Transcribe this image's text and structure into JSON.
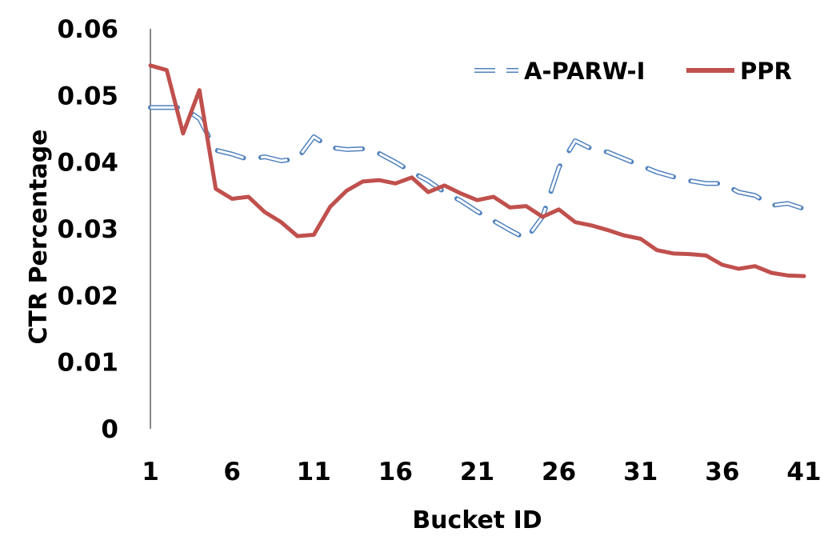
{
  "chart_data": {
    "type": "line",
    "title": "",
    "xlabel": "Bucket ID",
    "ylabel": "CTR Percentage",
    "x": [
      1,
      2,
      3,
      4,
      5,
      6,
      7,
      8,
      9,
      10,
      11,
      12,
      13,
      14,
      15,
      16,
      17,
      18,
      19,
      20,
      21,
      22,
      23,
      24,
      25,
      26,
      27,
      28,
      29,
      30,
      31,
      32,
      33,
      34,
      35,
      36,
      37,
      38,
      39,
      40,
      41
    ],
    "xticks": [
      "1",
      "6",
      "11",
      "16",
      "21",
      "26",
      "31",
      "36",
      "41"
    ],
    "xtick_values": [
      1,
      6,
      11,
      16,
      21,
      26,
      31,
      36,
      41
    ],
    "yticks": [
      "0",
      "0.01",
      "0.02",
      "0.03",
      "0.04",
      "0.05",
      "0.06"
    ],
    "ylim": [
      0,
      0.06
    ],
    "grid": false,
    "legend_position": "top-right",
    "series": [
      {
        "name": "A-PARW-I",
        "style": "dashed",
        "color": "#4f81bd",
        "values": [
          0.0482,
          0.0482,
          0.0482,
          0.0465,
          0.0418,
          0.0412,
          0.0404,
          0.0408,
          0.0402,
          0.0405,
          0.0438,
          0.0422,
          0.0419,
          0.042,
          0.0413,
          0.04,
          0.0385,
          0.0372,
          0.0355,
          0.0342,
          0.0326,
          0.0312,
          0.0298,
          0.0285,
          0.0318,
          0.0392,
          0.0432,
          0.042,
          0.0415,
          0.0405,
          0.0395,
          0.0385,
          0.0378,
          0.0372,
          0.0368,
          0.0368,
          0.0355,
          0.035,
          0.0335,
          0.0338,
          0.033
        ]
      },
      {
        "name": "PPR",
        "style": "solid",
        "color": "#c0504d",
        "values": [
          0.0545,
          0.0538,
          0.0443,
          0.0508,
          0.036,
          0.0345,
          0.0348,
          0.0325,
          0.031,
          0.0289,
          0.0291,
          0.0333,
          0.0357,
          0.0371,
          0.0373,
          0.0368,
          0.0377,
          0.0355,
          0.0365,
          0.0353,
          0.0343,
          0.0348,
          0.0332,
          0.0334,
          0.0318,
          0.0329,
          0.031,
          0.0305,
          0.0298,
          0.029,
          0.0285,
          0.0268,
          0.0263,
          0.0262,
          0.026,
          0.0246,
          0.024,
          0.0244,
          0.0234,
          0.023,
          0.0229
        ]
      }
    ]
  }
}
